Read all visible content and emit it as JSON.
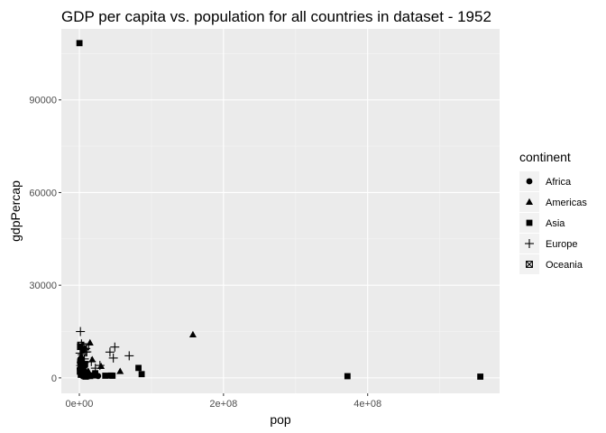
{
  "chart_data": {
    "type": "scatter",
    "title": "GDP per capita vs. population for all countries in dataset - 1952",
    "xlabel": "pop",
    "ylabel": "gdpPercap",
    "xlim": [
      -25000000,
      583000000
    ],
    "ylim": [
      -5000,
      113000
    ],
    "x_ticks": [
      0,
      200000000,
      400000000
    ],
    "x_tick_labels": [
      "0e+00",
      "2e+08",
      "4e+08"
    ],
    "y_ticks": [
      0,
      30000,
      60000,
      90000
    ],
    "y_tick_labels": [
      "0",
      "30000",
      "60000",
      "90000"
    ],
    "grid": true,
    "legend": {
      "title": "continent",
      "position": "right",
      "entries": [
        {
          "label": "Africa",
          "shape": "circle"
        },
        {
          "label": "Americas",
          "shape": "triangle"
        },
        {
          "label": "Asia",
          "shape": "square"
        },
        {
          "label": "Europe",
          "shape": "plus"
        },
        {
          "label": "Oceania",
          "shape": "square-x"
        }
      ]
    },
    "series": [
      {
        "name": "Africa",
        "shape": "circle",
        "points": [
          [
            1000000,
            2500
          ],
          [
            2000000,
            1500
          ],
          [
            3000000,
            900
          ],
          [
            500000,
            3000
          ],
          [
            4000000,
            1200
          ],
          [
            6000000,
            800
          ],
          [
            9000000,
            1100
          ],
          [
            12000000,
            700
          ],
          [
            20000000,
            1000
          ],
          [
            22000000,
            1400
          ],
          [
            14000000,
            600
          ],
          [
            8000000,
            2000
          ],
          [
            1500000,
            4500
          ],
          [
            2500000,
            2200
          ],
          [
            5000000,
            500
          ],
          [
            3500000,
            1800
          ],
          [
            700000,
            5000
          ],
          [
            1200000,
            6000
          ],
          [
            10000000,
            1300
          ],
          [
            26000000,
            600
          ]
        ]
      },
      {
        "name": "Americas",
        "shape": "triangle",
        "points": [
          [
            157553000,
            13990
          ],
          [
            14785000,
            11367
          ],
          [
            17876956,
            5911
          ],
          [
            56602560,
            2109
          ],
          [
            6377619,
            3940
          ],
          [
            4000000,
            3000
          ],
          [
            3000000,
            5500
          ],
          [
            2500000,
            7000
          ],
          [
            8000000,
            2500
          ],
          [
            1500000,
            6500
          ],
          [
            12350771,
            2173
          ],
          [
            30144317,
            3758
          ]
        ]
      },
      {
        "name": "Asia",
        "shape": "square",
        "points": [
          [
            160000,
            108382
          ],
          [
            556263527,
            400
          ],
          [
            372000000,
            547
          ],
          [
            82052000,
            3217
          ],
          [
            86459025,
            1207
          ],
          [
            1000000,
            10000
          ],
          [
            5000000,
            9000
          ],
          [
            20000000,
            800
          ],
          [
            44000000,
            750
          ],
          [
            46000000,
            700
          ],
          [
            8000000,
            4500
          ],
          [
            3000000,
            6000
          ],
          [
            22000000,
            1500
          ],
          [
            9000000,
            400
          ],
          [
            700000,
            2000
          ],
          [
            2000000,
            1000
          ],
          [
            36000000,
            700
          ],
          [
            15000000,
            600
          ]
        ]
      },
      {
        "name": "Europe",
        "shape": "plus",
        "points": [
          [
            69145952,
            7144
          ],
          [
            49182000,
            9980
          ],
          [
            47124000,
            6424
          ],
          [
            42460000,
            8343
          ],
          [
            28549870,
            4029
          ],
          [
            22235677,
            3145
          ],
          [
            16630000,
            5263
          ],
          [
            10381988,
            8412
          ],
          [
            8730405,
            8343
          ],
          [
            6927772,
            6137
          ],
          [
            4406000,
            10095
          ],
          [
            3000000,
            11000
          ],
          [
            1500000,
            15000
          ],
          [
            2000000,
            4000
          ],
          [
            5000000,
            3500
          ],
          [
            7000000,
            5000
          ],
          [
            9000000,
            9500
          ],
          [
            4000000,
            7500
          ],
          [
            3500000,
            2000
          ],
          [
            1000000,
            8000
          ]
        ]
      },
      {
        "name": "Oceania",
        "shape": "square-x",
        "points": [
          [
            8691212,
            10040
          ],
          [
            1994794,
            10557
          ]
        ]
      }
    ]
  }
}
